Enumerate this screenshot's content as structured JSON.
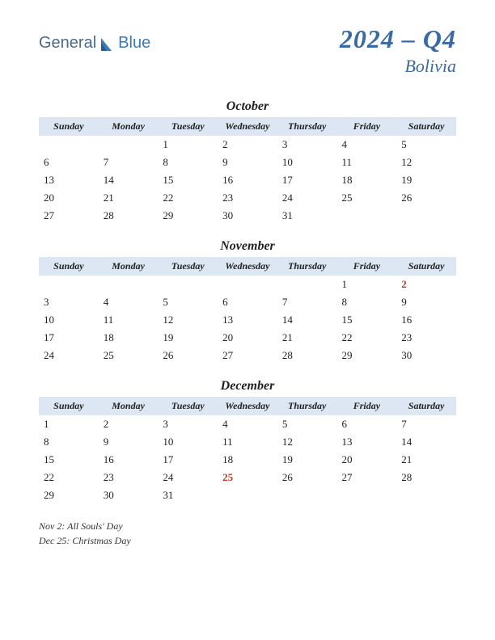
{
  "logo": {
    "part1": "General",
    "part2": "Blue"
  },
  "title": {
    "main": "2024 – Q4",
    "sub": "Bolivia"
  },
  "day_headers": [
    "Sunday",
    "Monday",
    "Tuesday",
    "Wednesday",
    "Thursday",
    "Friday",
    "Saturday"
  ],
  "header_bg": "#dde7f3",
  "accent_color": "#3a6aa5",
  "holiday_color": "#c0392b",
  "months": [
    {
      "name": "October",
      "weeks": [
        [
          "",
          "",
          "1",
          "2",
          "3",
          "4",
          "5"
        ],
        [
          "6",
          "7",
          "8",
          "9",
          "10",
          "11",
          "12"
        ],
        [
          "13",
          "14",
          "15",
          "16",
          "17",
          "18",
          "19"
        ],
        [
          "20",
          "21",
          "22",
          "23",
          "24",
          "25",
          "26"
        ],
        [
          "27",
          "28",
          "29",
          "30",
          "31",
          "",
          ""
        ]
      ],
      "holidays": []
    },
    {
      "name": "November",
      "weeks": [
        [
          "",
          "",
          "",
          "",
          "",
          "1",
          "2"
        ],
        [
          "3",
          "4",
          "5",
          "6",
          "7",
          "8",
          "9"
        ],
        [
          "10",
          "11",
          "12",
          "13",
          "14",
          "15",
          "16"
        ],
        [
          "17",
          "18",
          "19",
          "20",
          "21",
          "22",
          "23"
        ],
        [
          "24",
          "25",
          "26",
          "27",
          "28",
          "29",
          "30"
        ]
      ],
      "holidays": [
        "2"
      ]
    },
    {
      "name": "December",
      "weeks": [
        [
          "1",
          "2",
          "3",
          "4",
          "5",
          "6",
          "7"
        ],
        [
          "8",
          "9",
          "10",
          "11",
          "12",
          "13",
          "14"
        ],
        [
          "15",
          "16",
          "17",
          "18",
          "19",
          "20",
          "21"
        ],
        [
          "22",
          "23",
          "24",
          "25",
          "26",
          "27",
          "28"
        ],
        [
          "29",
          "30",
          "31",
          "",
          "",
          "",
          ""
        ]
      ],
      "holidays": [
        "25"
      ]
    }
  ],
  "notes": [
    "Nov 2: All Souls' Day",
    "Dec 25: Christmas Day"
  ]
}
